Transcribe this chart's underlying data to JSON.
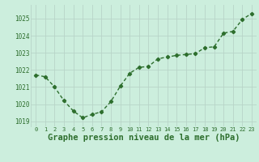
{
  "x": [
    0,
    1,
    2,
    3,
    4,
    5,
    6,
    7,
    8,
    9,
    10,
    11,
    12,
    13,
    14,
    15,
    16,
    17,
    18,
    19,
    20,
    21,
    22,
    23
  ],
  "y": [
    1021.7,
    1021.6,
    1021.0,
    1020.2,
    1019.6,
    1019.2,
    1019.4,
    1019.55,
    1020.15,
    1021.05,
    1021.8,
    1022.15,
    1022.2,
    1022.65,
    1022.75,
    1022.85,
    1022.9,
    1022.95,
    1023.3,
    1023.35,
    1024.15,
    1024.25,
    1024.95,
    1025.3
  ],
  "line_color": "#2d6e2d",
  "marker": "D",
  "marker_size": 2.2,
  "line_width": 1.0,
  "background_color": "#cceedd",
  "grid_color": "#b8d4c8",
  "xlabel": "Graphe pression niveau de la mer (hPa)",
  "xlabel_fontsize": 7.5,
  "ylim": [
    1018.7,
    1025.8
  ],
  "yticks": [
    1019,
    1020,
    1021,
    1022,
    1023,
    1024,
    1025
  ],
  "xticks": [
    0,
    1,
    2,
    3,
    4,
    5,
    6,
    7,
    8,
    9,
    10,
    11,
    12,
    13,
    14,
    15,
    16,
    17,
    18,
    19,
    20,
    21,
    22,
    23
  ],
  "tick_label_color": "#2d6e2d",
  "xlabel_color": "#2d6e2d",
  "xlabel_fontweight": "bold"
}
